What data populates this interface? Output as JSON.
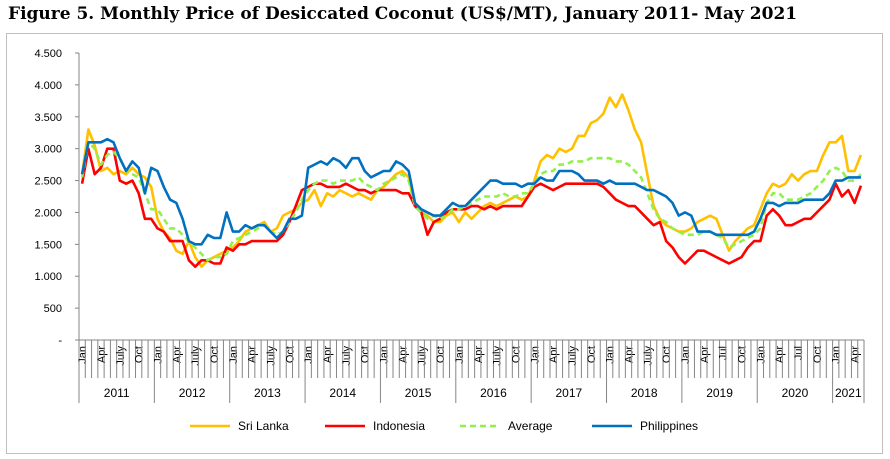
{
  "chart_data": {
    "type": "line",
    "title": "Figure 5. Monthly Price of Desiccated Coconut (US$/MT), January 2011- May 2021",
    "xlabel": "",
    "ylabel": "",
    "ylim": [
      0,
      4500
    ],
    "y_ticks": [
      0,
      500,
      1000,
      1500,
      2000,
      2500,
      3000,
      3500,
      4000,
      4500
    ],
    "y_tick_labels": [
      "-",
      "500",
      "1.000",
      "1.500",
      "2.000",
      "2.500",
      "3.000",
      "3.500",
      "4.000",
      "4.500"
    ],
    "grid": false,
    "legend_position": "bottom",
    "years": [
      {
        "year": "2011",
        "months": 12,
        "labels": [
          "Jan",
          "Apr",
          "July",
          "Oct"
        ]
      },
      {
        "year": "2012",
        "months": 12,
        "labels": [
          "Jan",
          "Apr",
          "July",
          "Oct"
        ]
      },
      {
        "year": "2013",
        "months": 12,
        "labels": [
          "Jan",
          "Apr",
          "July",
          "Oct"
        ]
      },
      {
        "year": "2014",
        "months": 12,
        "labels": [
          "Jan",
          "Apr",
          "July",
          "Oct"
        ]
      },
      {
        "year": "2015",
        "months": 12,
        "labels": [
          "Jan",
          "Apr",
          "July",
          "Oct"
        ]
      },
      {
        "year": "2016",
        "months": 12,
        "labels": [
          "Jan",
          "Apr",
          "July",
          "Oct"
        ]
      },
      {
        "year": "2017",
        "months": 12,
        "labels": [
          "Jan",
          "Apr",
          "July",
          "Oct"
        ]
      },
      {
        "year": "2018",
        "months": 12,
        "labels": [
          "Jan",
          "Apr",
          "July",
          "Oct"
        ]
      },
      {
        "year": "2019",
        "months": 12,
        "labels": [
          "Jan",
          "Apr",
          "Jul",
          "Oct"
        ]
      },
      {
        "year": "2020",
        "months": 12,
        "labels": [
          "Jan",
          "Apr",
          "Jul",
          "Oct"
        ]
      },
      {
        "year": "2021",
        "months": 5,
        "labels": [
          "Jan",
          "Apr"
        ]
      }
    ],
    "series": [
      {
        "name": "Sri Lanka",
        "color": "#FFC000",
        "dashed": false,
        "values": [
          2600,
          3300,
          3050,
          2650,
          2700,
          2600,
          2650,
          2600,
          2700,
          2600,
          2550,
          2400,
          1900,
          1700,
          1600,
          1400,
          1350,
          1550,
          1300,
          1150,
          1250,
          1300,
          1350,
          1400,
          1450,
          1550,
          1700,
          1750,
          1800,
          1850,
          1700,
          1750,
          1950,
          2000,
          2050,
          2150,
          2200,
          2350,
          2100,
          2300,
          2250,
          2350,
          2300,
          2250,
          2300,
          2250,
          2200,
          2350,
          2400,
          2500,
          2600,
          2650,
          2550,
          2100,
          2000,
          1950,
          1850,
          1850,
          1950,
          2000,
          1850,
          2000,
          1900,
          2000,
          2100,
          2150,
          2100,
          2150,
          2200,
          2250,
          2200,
          2250,
          2500,
          2800,
          2900,
          2850,
          3000,
          2950,
          3000,
          3200,
          3200,
          3400,
          3450,
          3550,
          3800,
          3650,
          3850,
          3600,
          3300,
          3100,
          2600,
          2100,
          1900,
          1800,
          1750,
          1700,
          1700,
          1750,
          1850,
          1900,
          1950,
          1900,
          1650,
          1400,
          1550,
          1650,
          1750,
          1800,
          2050,
          2300,
          2450,
          2400,
          2450,
          2600,
          2500,
          2600,
          2650,
          2650,
          2900,
          3100,
          3100,
          3200,
          2650,
          2650,
          2900
        ]
      },
      {
        "name": "Indonesia",
        "color": "#FF0000",
        "dashed": false,
        "values": [
          2450,
          3000,
          2600,
          2700,
          3000,
          3000,
          2500,
          2450,
          2500,
          2300,
          1900,
          1900,
          1750,
          1700,
          1550,
          1550,
          1550,
          1250,
          1150,
          1250,
          1250,
          1200,
          1200,
          1450,
          1400,
          1500,
          1500,
          1550,
          1550,
          1550,
          1550,
          1550,
          1650,
          1850,
          2100,
          2350,
          2400,
          2450,
          2450,
          2400,
          2400,
          2400,
          2450,
          2400,
          2350,
          2350,
          2300,
          2350,
          2350,
          2350,
          2350,
          2300,
          2300,
          2100,
          2000,
          1650,
          1850,
          1900,
          2000,
          2050,
          2050,
          2050,
          2100,
          2100,
          2050,
          2100,
          2050,
          2100,
          2100,
          2100,
          2100,
          2250,
          2400,
          2450,
          2400,
          2350,
          2400,
          2450,
          2450,
          2450,
          2450,
          2450,
          2450,
          2400,
          2300,
          2200,
          2150,
          2100,
          2100,
          2000,
          1900,
          1800,
          1850,
          1550,
          1450,
          1300,
          1200,
          1300,
          1400,
          1400,
          1350,
          1300,
          1250,
          1200,
          1250,
          1300,
          1450,
          1550,
          1550,
          1950,
          2050,
          1950,
          1800,
          1800,
          1850,
          1900,
          1900,
          2000,
          2100,
          2200,
          2450,
          2250,
          2350,
          2150,
          2420
        ]
      },
      {
        "name": "Average",
        "color": "#92F04B",
        "dashed": true,
        "values": [
          2550,
          3100,
          3000,
          2750,
          2900,
          2950,
          2850,
          2650,
          2600,
          2550,
          2300,
          2050,
          2050,
          1900,
          1750,
          1750,
          1650,
          1550,
          1450,
          1350,
          1250,
          1300,
          1300,
          1350,
          1550,
          1600,
          1650,
          1700,
          1750,
          1800,
          1700,
          1650,
          1700,
          1850,
          2000,
          2200,
          2350,
          2450,
          2500,
          2500,
          2450,
          2500,
          2500,
          2500,
          2550,
          2450,
          2400,
          2350,
          2450,
          2500,
          2550,
          2600,
          2500,
          2100,
          2000,
          1900,
          1950,
          1900,
          1950,
          2050,
          2050,
          2100,
          2150,
          2200,
          2250,
          2250,
          2250,
          2300,
          2250,
          2250,
          2300,
          2300,
          2450,
          2600,
          2650,
          2650,
          2750,
          2750,
          2800,
          2800,
          2800,
          2850,
          2850,
          2850,
          2850,
          2800,
          2800,
          2750,
          2650,
          2550,
          2300,
          2050,
          1900,
          1850,
          1750,
          1700,
          1650,
          1650,
          1650,
          1700,
          1700,
          1650,
          1600,
          1450,
          1500,
          1550,
          1600,
          1650,
          1750,
          2150,
          2300,
          2300,
          2200,
          2200,
          2200,
          2250,
          2300,
          2400,
          2500,
          2650,
          2700,
          2650,
          2500,
          2500,
          2600
        ]
      },
      {
        "name": "Philippines",
        "color": "#0070C0",
        "dashed": false,
        "values": [
          2600,
          3100,
          3100,
          3100,
          3150,
          3100,
          2850,
          2650,
          2800,
          2700,
          2300,
          2700,
          2650,
          2400,
          2200,
          2150,
          1900,
          1550,
          1500,
          1500,
          1650,
          1600,
          1600,
          2000,
          1700,
          1700,
          1800,
          1750,
          1800,
          1800,
          1700,
          1600,
          1700,
          1900,
          1900,
          1950,
          2700,
          2750,
          2800,
          2750,
          2850,
          2800,
          2700,
          2850,
          2850,
          2650,
          2550,
          2600,
          2650,
          2650,
          2800,
          2750,
          2650,
          2150,
          2050,
          2000,
          1950,
          1950,
          2050,
          2150,
          2100,
          2100,
          2200,
          2300,
          2400,
          2500,
          2500,
          2450,
          2450,
          2450,
          2400,
          2450,
          2450,
          2550,
          2500,
          2500,
          2650,
          2650,
          2650,
          2600,
          2500,
          2500,
          2500,
          2450,
          2500,
          2450,
          2450,
          2450,
          2450,
          2400,
          2350,
          2350,
          2300,
          2250,
          2150,
          1950,
          2000,
          1950,
          1700,
          1700,
          1700,
          1650,
          1650,
          1650,
          1650,
          1650,
          1650,
          1700,
          1900,
          2150,
          2150,
          2100,
          2150,
          2150,
          2150,
          2200,
          2200,
          2200,
          2200,
          2300,
          2500,
          2500,
          2550,
          2550,
          2550
        ]
      }
    ]
  }
}
